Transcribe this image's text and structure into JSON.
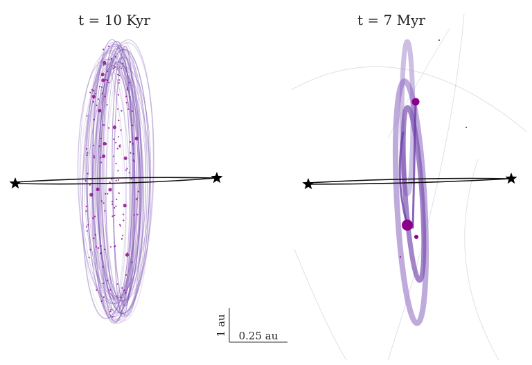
{
  "panels": [
    {
      "title": "t = 10 Kyr"
    },
    {
      "title": "t = 7 Myr"
    }
  ],
  "scale_bar": {
    "vertical_label": "1 au",
    "horizontal_label": "0.25 au"
  }
}
